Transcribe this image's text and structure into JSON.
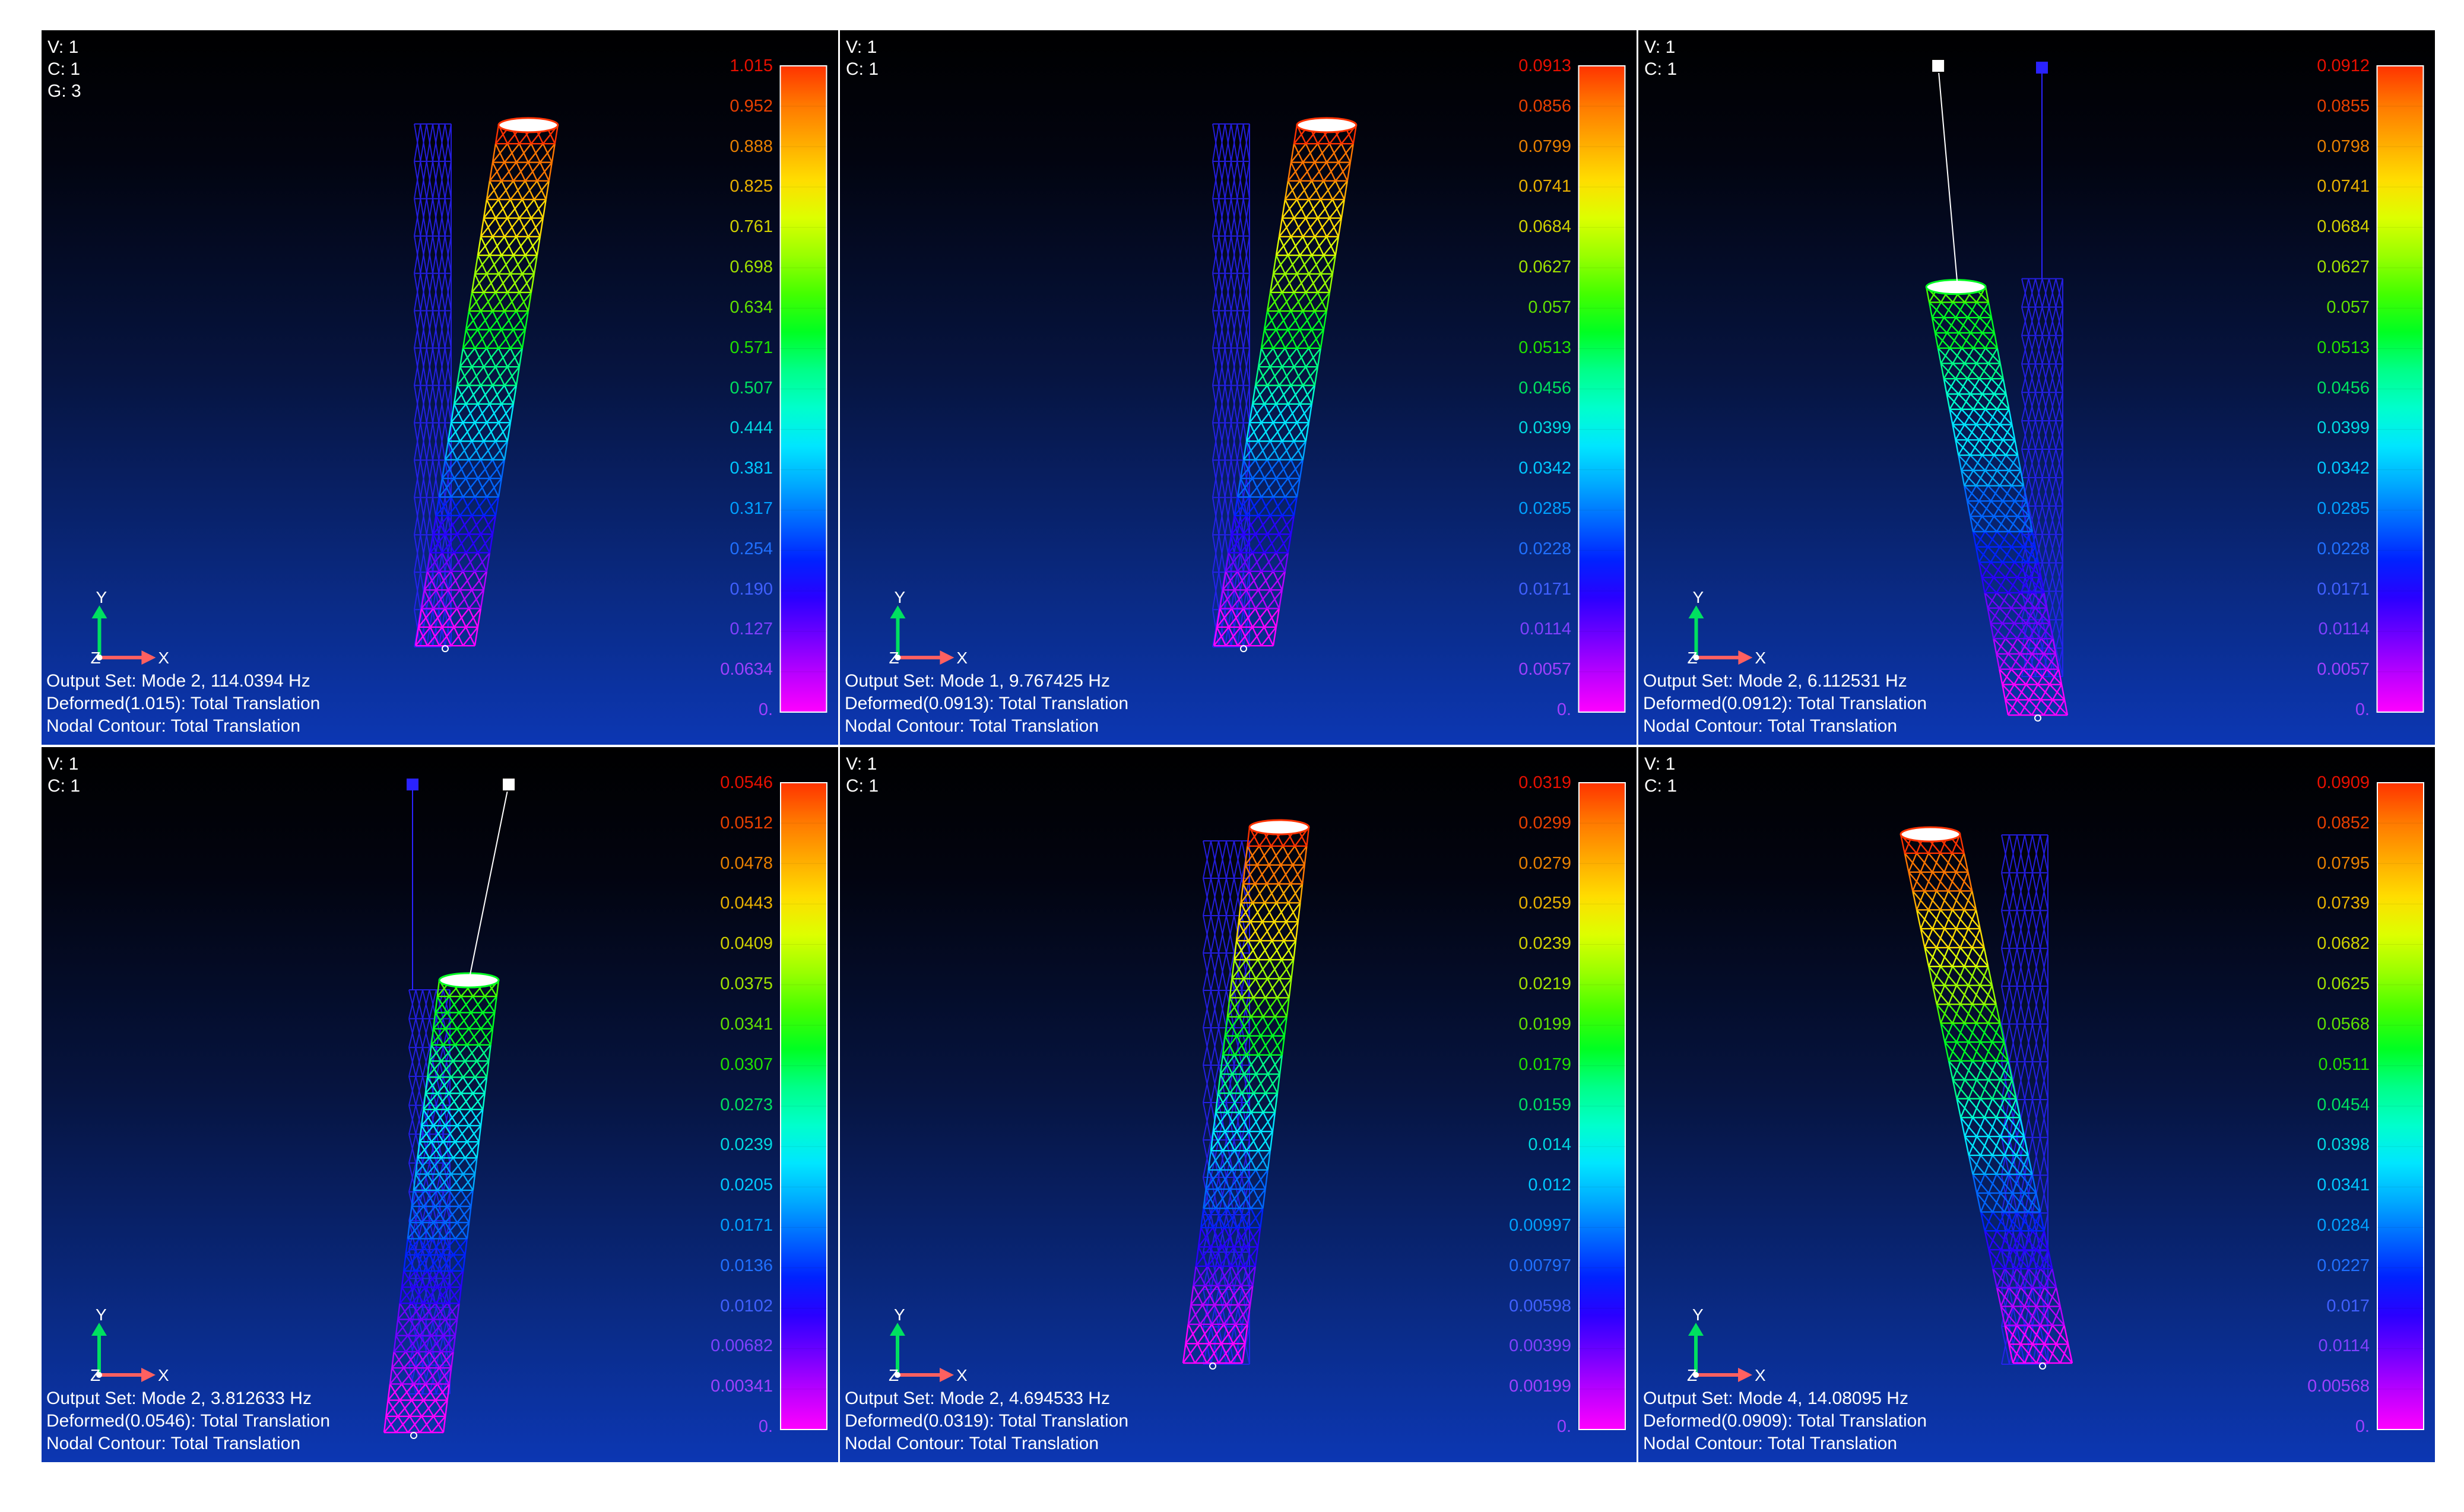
{
  "triad": {
    "x": "X",
    "y": "Y",
    "z": "Z"
  },
  "colors": {
    "ramp": [
      "#ff00ff",
      "#bb00ff",
      "#7000ff",
      "#2a00ff",
      "#0022ff",
      "#0066ff",
      "#00aaff",
      "#00e6ff",
      "#00ffcc",
      "#00ff88",
      "#00ff22",
      "#44ff00",
      "#99ff00",
      "#ddff00",
      "#ffdd00",
      "#ffaa00",
      "#ff7700",
      "#ff3300"
    ],
    "label_ramp": [
      "#a040ff",
      "#a040ff",
      "#8040ff",
      "#4060ff",
      "#2070ff",
      "#00a0ff",
      "#00c8ff",
      "#00d8e0",
      "#00e8a0",
      "#00e060",
      "#20e000",
      "#60e000",
      "#a0e000",
      "#d0d000",
      "#e8b000",
      "#e88000",
      "#e84000",
      "#e81000"
    ],
    "undeformed": "#2a22ff"
  },
  "panes": [
    {
      "view": {
        "v": "V: 1",
        "c": "C: 1",
        "g": "G: 3"
      },
      "scale": [
        "1.015",
        "0.952",
        "0.888",
        "0.825",
        "0.761",
        "0.698",
        "0.634",
        "0.571",
        "0.507",
        "0.444",
        "0.381",
        "0.317",
        "0.254",
        "0.190",
        "0.127",
        "0.0634",
        "0."
      ],
      "output_set": "Output Set: Mode 2, 114.0394 Hz",
      "deformed": "Deformed(1.015): Total Translation",
      "contour": "Nodal Contour: Total Translation",
      "shape": "tilt_right"
    },
    {
      "view": {
        "v": "V: 1",
        "c": "C: 1"
      },
      "scale": [
        "0.0913",
        "0.0856",
        "0.0799",
        "0.0741",
        "0.0684",
        "0.0627",
        "0.057",
        "0.0513",
        "0.0456",
        "0.0399",
        "0.0342",
        "0.0285",
        "0.0228",
        "0.0171",
        "0.0114",
        "0.0057",
        "0."
      ],
      "output_set": "Output Set: Mode 1, 9.767425 Hz",
      "deformed": "Deformed(0.0913): Total Translation",
      "contour": "Nodal Contour: Total Translation",
      "shape": "tilt_right"
    },
    {
      "view": {
        "v": "V: 1",
        "c": "C: 1"
      },
      "scale": [
        "0.0912",
        "0.0855",
        "0.0798",
        "0.0741",
        "0.0684",
        "0.0627",
        "0.057",
        "0.0513",
        "0.0456",
        "0.0399",
        "0.0342",
        "0.0285",
        "0.0228",
        "0.0171",
        "0.0114",
        "0.0057",
        "0."
      ],
      "output_set": "Output Set: Mode 2, 6.112531 Hz",
      "deformed": "Deformed(0.0912): Total Translation",
      "contour": "Nodal Contour: Total Translation",
      "shape": "short_left"
    },
    {
      "view": {
        "v": "V: 1",
        "c": "C: 1"
      },
      "scale": [
        "0.0546",
        "0.0512",
        "0.0478",
        "0.0443",
        "0.0409",
        "0.0375",
        "0.0341",
        "0.0307",
        "0.0273",
        "0.0239",
        "0.0205",
        "0.0171",
        "0.0136",
        "0.0102",
        "0.00682",
        "0.00341",
        "0."
      ],
      "output_set": "Output Set: Mode 2, 3.812633 Hz",
      "deformed": "Deformed(0.0546): Total Translation",
      "contour": "Nodal Contour: Total Translation",
      "shape": "short_right"
    },
    {
      "view": {
        "v": "V: 1",
        "c": "C: 1"
      },
      "scale": [
        "0.0319",
        "0.0299",
        "0.0279",
        "0.0259",
        "0.0239",
        "0.0219",
        "0.0199",
        "0.0179",
        "0.0159",
        "0.014",
        "0.012",
        "0.00997",
        "0.00797",
        "0.00598",
        "0.00399",
        "0.00199",
        "0."
      ],
      "output_set": "Output Set: Mode 2, 4.694533 Hz",
      "deformed": "Deformed(0.0319): Total Translation",
      "contour": "Nodal Contour: Total Translation",
      "shape": "bend_right"
    },
    {
      "view": {
        "v": "V: 1",
        "c": "C: 1"
      },
      "scale": [
        "0.0909",
        "0.0852",
        "0.0795",
        "0.0739",
        "0.0682",
        "0.0625",
        "0.0568",
        "0.0511",
        "0.0454",
        "0.0398",
        "0.0341",
        "0.0284",
        "0.0227",
        "0.017",
        "0.0114",
        "0.00568",
        "0."
      ],
      "output_set": "Output Set: Mode 4, 14.08095 Hz",
      "deformed": "Deformed(0.0909): Total Translation",
      "contour": "Nodal Contour: Total Translation",
      "shape": "tilt_left"
    }
  ]
}
